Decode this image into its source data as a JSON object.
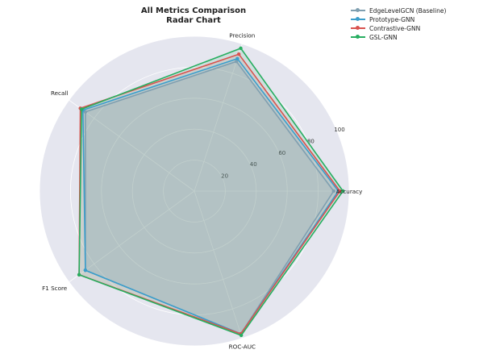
{
  "chart_data": {
    "type": "radar",
    "title": "All Metrics Comparison",
    "subtitle": "Radar Chart",
    "categories": [
      "Accuracy",
      "Precision",
      "Recall",
      "F1 Score",
      "ROC-AUC"
    ],
    "radial_ticks": [
      "20",
      "40",
      "60",
      "80",
      "100"
    ],
    "rlim": [
      0,
      100
    ],
    "grid": true,
    "legend_position": "top-right",
    "series": [
      {
        "name": "EdgeLevelGCN (Baseline)",
        "color": "#7f9fb0",
        "values": [
          90,
          88,
          87,
          87,
          97
        ]
      },
      {
        "name": "Prototype-GNN",
        "color": "#3a9ecc",
        "values": [
          93,
          90,
          89,
          87,
          97
        ]
      },
      {
        "name": "Contrastive-GNN",
        "color": "#d9534f",
        "values": [
          94,
          93,
          91,
          92,
          97
        ]
      },
      {
        "name": "GSL-GNN",
        "color": "#27ae60",
        "values": [
          96,
          97,
          90,
          92,
          98
        ]
      }
    ]
  }
}
